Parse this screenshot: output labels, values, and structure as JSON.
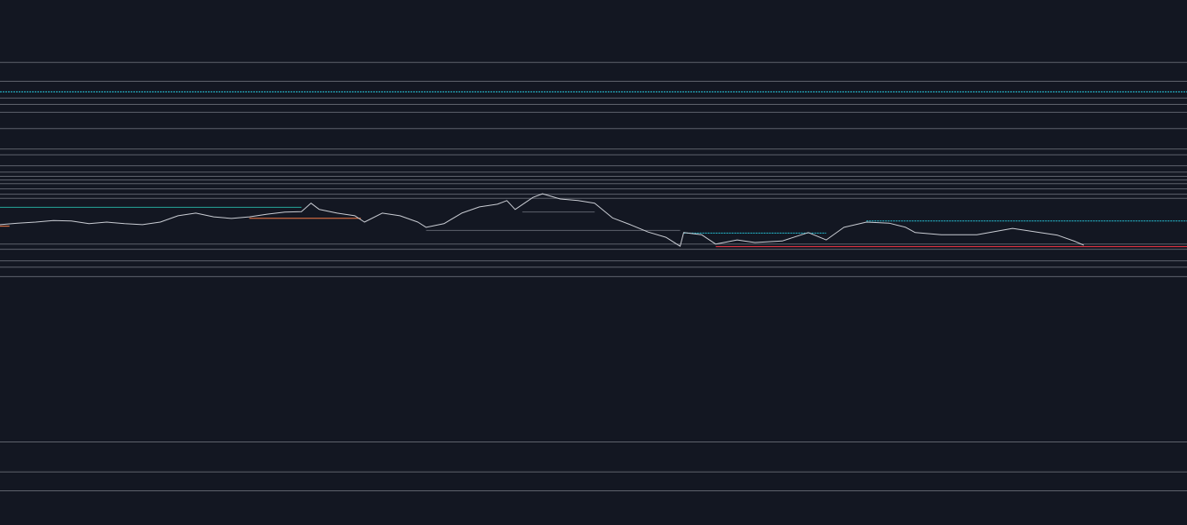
{
  "chart_data": {
    "type": "line",
    "background": "#131722",
    "xlim": [
      0,
      100
    ],
    "ylim": [
      0,
      100
    ],
    "series": [
      {
        "color": "#c8cbd2",
        "x": [
          0,
          1.5,
          3.0,
          4.5,
          6.0,
          7.5,
          9.0,
          10.5,
          12.0,
          13.5,
          15.0,
          16.5,
          18.0,
          19.5,
          21.0,
          22.5,
          24.0,
          25.4,
          26.2,
          26.9,
          28.4,
          29.9,
          30.7,
          32.2,
          33.7,
          35.2,
          35.9,
          37.4,
          38.9,
          40.4,
          41.9,
          42.7,
          43.4,
          44.9,
          45.7,
          47.2,
          48.7,
          50.1,
          51.6,
          53.1,
          54.6,
          56.1,
          57.3,
          57.6,
          59.1,
          60.3,
          62.1,
          63.6,
          65.9,
          68.1,
          69.6,
          71.1,
          73.0,
          74.9,
          76.3,
          77.1,
          79.3,
          82.3,
          85.3,
          87.6,
          89.1,
          90.6,
          91.3
        ],
        "values": [
          57.2,
          57.5,
          57.7,
          58.0,
          57.9,
          57.4,
          57.7,
          57.4,
          57.2,
          57.7,
          58.9,
          59.4,
          58.7,
          58.4,
          58.7,
          59.2,
          59.6,
          59.7,
          61.3,
          60.1,
          59.4,
          58.9,
          57.7,
          59.4,
          58.9,
          57.7,
          56.7,
          57.4,
          59.4,
          60.6,
          61.1,
          61.8,
          60.1,
          62.4,
          63.1,
          62.1,
          61.8,
          61.3,
          58.5,
          57.2,
          55.8,
          54.8,
          53.1,
          55.7,
          55.3,
          53.5,
          54.3,
          53.8,
          54.1,
          55.7,
          54.3,
          56.7,
          57.7,
          57.5,
          56.7,
          55.7,
          55.3,
          55.3,
          56.5,
          55.7,
          55.2,
          54.0,
          53.3
        ]
      }
    ],
    "levels": {
      "color": "#5d616b",
      "values": [
        88.2,
        84.6,
        81.4,
        80.2,
        78.7,
        75.6,
        71.7,
        70.6,
        68.5,
        67.3,
        66.5,
        65.8,
        65.1,
        64.1,
        63.1,
        62.3,
        53.6,
        52.6,
        50.4,
        49.2,
        47.4,
        15.9,
        10.2,
        6.6
      ]
    },
    "segments": [
      {
        "color": "#26c6da",
        "value": 82.6,
        "xlim": [
          0,
          100
        ],
        "dashed": true
      },
      {
        "color": "#26c6da",
        "value": 58.0,
        "xlim": [
          73.0,
          100
        ],
        "dashed": true
      },
      {
        "color": "#f23645",
        "value": 53.1,
        "xlim": [
          60.3,
          100
        ],
        "dashed": false
      },
      {
        "color": "#26c6da",
        "value": 55.7,
        "xlim": [
          57.6,
          69.6
        ],
        "dashed": true
      },
      {
        "color": "#26a69a",
        "value": 60.6,
        "xlim": [
          0,
          25.4
        ],
        "dashed": false
      },
      {
        "color": "#f57c48",
        "value": 58.5,
        "xlim": [
          21.0,
          30.4
        ],
        "dashed": false
      },
      {
        "color": "#f57c48",
        "value": 57.0,
        "xlim": [
          0,
          0.8
        ],
        "dashed": false
      },
      {
        "color": "#5d616b",
        "value": 59.7,
        "xlim": [
          44.0,
          50.1
        ],
        "dashed": false
      },
      {
        "color": "#5d616b",
        "value": 56.2,
        "xlim": [
          35.9,
          57.3
        ],
        "dashed": false
      }
    ]
  }
}
